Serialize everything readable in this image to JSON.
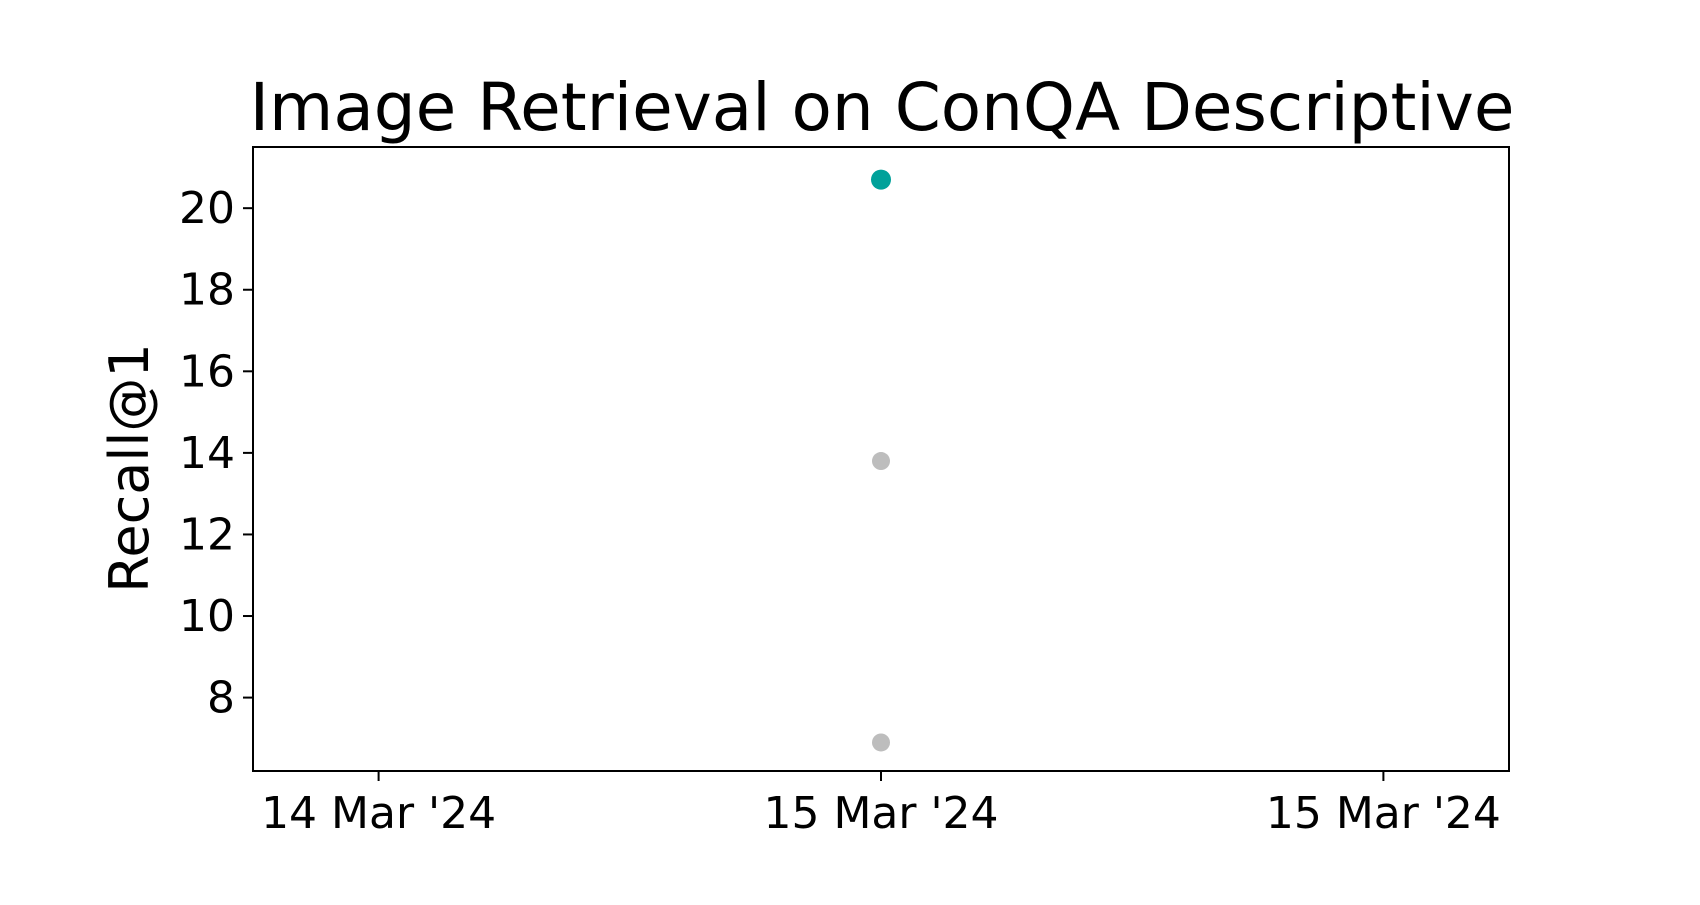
{
  "chart_data": {
    "type": "scatter",
    "title": "Image Retrieval on ConQA Descriptive",
    "xlabel": "",
    "ylabel": "Recall@1",
    "x_ticks": [
      {
        "label": "14 Mar '24",
        "pos": 0
      },
      {
        "label": "15 Mar '24",
        "pos": 1
      },
      {
        "label": "15 Mar '24",
        "pos": 2
      }
    ],
    "xlim": [
      -0.25,
      2.25
    ],
    "ylim": [
      6.2,
      21.5
    ],
    "y_ticks": [
      8,
      10,
      12,
      14,
      16,
      18,
      20
    ],
    "grid": false,
    "points": [
      {
        "x": 1,
        "y": 20.7,
        "color": "#00a19a",
        "highlight": true
      },
      {
        "x": 1,
        "y": 13.8,
        "color": "#bdbdbd",
        "highlight": false
      },
      {
        "x": 1,
        "y": 6.9,
        "color": "#bdbdbd",
        "highlight": false
      }
    ]
  }
}
